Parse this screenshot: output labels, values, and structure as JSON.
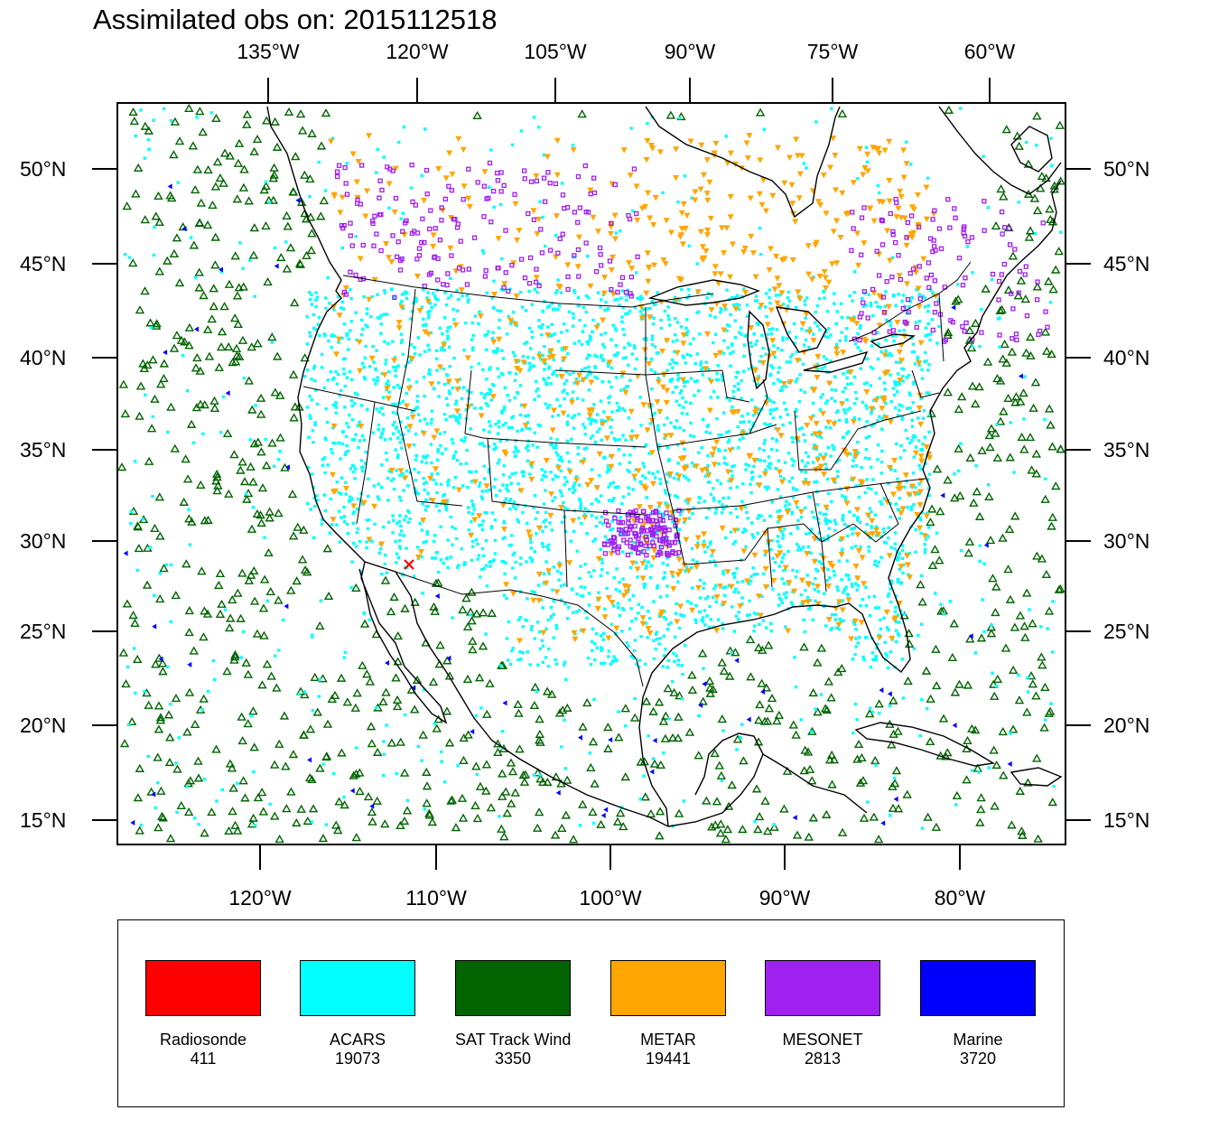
{
  "title": "Assimilated obs on: 2015112518",
  "axes": {
    "top_lon_labels": [
      "135°W",
      "120°W",
      "105°W",
      "90°W",
      "75°W",
      "60°W"
    ],
    "bottom_lon_labels": [
      "120°W",
      "110°W",
      "100°W",
      "90°W",
      "80°W"
    ],
    "lat_labels": [
      "50°N",
      "45°N",
      "40°N",
      "35°N",
      "30°N",
      "25°N",
      "20°N",
      "15°N"
    ]
  },
  "legend": [
    {
      "name": "Radiosonde",
      "count": "411",
      "color": "#ff0000"
    },
    {
      "name": "ACARS",
      "count": "19073",
      "color": "#00ffff"
    },
    {
      "name": "SAT Track Wind",
      "count": "3350",
      "color": "#006400"
    },
    {
      "name": "METAR",
      "count": "19441",
      "color": "#ffa500"
    },
    {
      "name": "MESONET",
      "count": "2813",
      "color": "#a020f0"
    },
    {
      "name": "Marine",
      "count": "3720",
      "color": "#0000ff"
    }
  ],
  "colors": {
    "radiosonde": "#ff0000",
    "acars": "#00ffff",
    "sat_track_wind": "#006400",
    "metar": "#ffa500",
    "mesonet": "#a020f0",
    "marine": "#0000ff"
  }
}
